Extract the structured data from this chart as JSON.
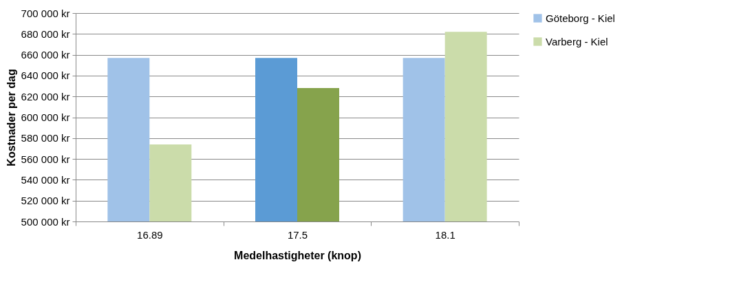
{
  "chart_data": {
    "type": "bar",
    "xlabel": "Medelhastigheter (knop)",
    "ylabel": "Kostnader per dag",
    "categories": [
      "16.89",
      "17.5",
      "18.1"
    ],
    "series": [
      {
        "name": "Göteborg - Kiel",
        "color": "#a0c2e8",
        "colors": [
          "#a0c2e8",
          "#5b9bd5",
          "#a0c2e8"
        ],
        "values": [
          657000,
          657000,
          657000
        ]
      },
      {
        "name": "Varberg - Kiel",
        "color": "#cbdcaa",
        "colors": [
          "#cbdcaa",
          "#86a34c",
          "#cbdcaa"
        ],
        "values": [
          574000,
          628000,
          682000
        ]
      }
    ],
    "ylim": [
      500000,
      700000
    ],
    "yticks": [
      {
        "value": 500000,
        "label": "500 000 kr"
      },
      {
        "value": 520000,
        "label": "520 000 kr"
      },
      {
        "value": 540000,
        "label": "540 000 kr"
      },
      {
        "value": 560000,
        "label": "560 000 kr"
      },
      {
        "value": 580000,
        "label": "580 000 kr"
      },
      {
        "value": 600000,
        "label": "600 000 kr"
      },
      {
        "value": 620000,
        "label": "620 000 kr"
      },
      {
        "value": 640000,
        "label": "640 000 kr"
      },
      {
        "value": 660000,
        "label": "660 000 kr"
      },
      {
        "value": 680000,
        "label": "680 000 kr"
      },
      {
        "value": 700000,
        "label": "700 000 kr"
      }
    ],
    "grid": "y",
    "legend": "right"
  }
}
